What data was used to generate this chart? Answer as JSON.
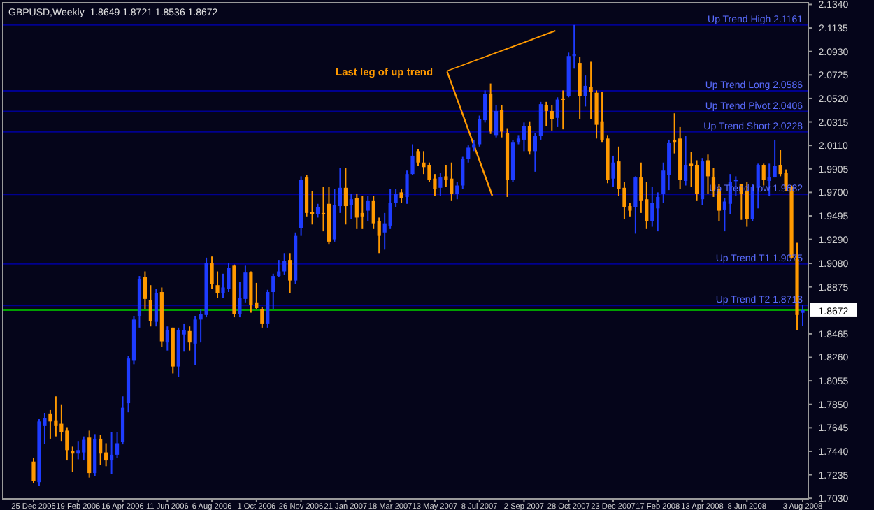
{
  "chart_data": {
    "type": "candlestick",
    "title": "GBPUSD,Weekly  1.8649 1.8721 1.8536 1.8672",
    "categories": [
      "25 Dec 2005",
      null,
      null,
      null,
      null,
      null,
      null,
      null,
      "19 Feb 2006",
      null,
      null,
      null,
      null,
      null,
      null,
      null,
      "16 Apr 2006",
      null,
      null,
      null,
      null,
      null,
      null,
      null,
      "11 Jun 2006",
      null,
      null,
      null,
      null,
      null,
      null,
      null,
      "6 Aug 2006",
      null,
      null,
      null,
      null,
      null,
      null,
      null,
      "1 Oct 2006",
      null,
      null,
      null,
      null,
      null,
      null,
      null,
      "26 Nov 2006",
      null,
      null,
      null,
      null,
      null,
      null,
      null,
      "21 Jan 2007",
      null,
      null,
      null,
      null,
      null,
      null,
      null,
      "18 Mar 2007",
      null,
      null,
      null,
      null,
      null,
      null,
      null,
      "13 May 2007",
      null,
      null,
      null,
      null,
      null,
      null,
      null,
      "8 Jul 2007",
      null,
      null,
      null,
      null,
      null,
      null,
      null,
      "2 Sep 2007",
      null,
      null,
      null,
      null,
      null,
      null,
      null,
      "28 Oct 2007",
      null,
      null,
      null,
      null,
      null,
      null,
      null,
      "23 Dec 2007",
      null,
      null,
      null,
      null,
      null,
      null,
      null,
      "17 Feb 2008",
      null,
      null,
      null,
      null,
      null,
      null,
      null,
      "13 Apr 2008",
      null,
      null,
      null,
      null,
      null,
      null,
      null,
      "8 Jun 2008",
      null,
      null,
      null,
      null,
      null,
      null,
      null,
      null,
      null,
      "3 Aug 2008"
    ],
    "ohlc": [
      [
        1.735,
        1.738,
        1.716,
        1.718
      ],
      [
        1.717,
        1.772,
        1.714,
        1.77
      ],
      [
        1.766,
        1.7775,
        1.7505,
        1.773
      ],
      [
        1.777,
        1.78,
        1.755,
        1.77
      ],
      [
        1.771,
        1.792,
        1.757,
        1.766
      ],
      [
        1.768,
        1.785,
        1.753,
        1.761
      ],
      [
        1.762,
        1.765,
        1.736,
        1.745
      ],
      [
        1.744,
        1.748,
        1.726,
        1.742
      ],
      [
        1.742,
        1.753,
        1.737,
        1.745
      ],
      [
        1.743,
        1.757,
        1.736,
        1.754
      ],
      [
        1.756,
        1.762,
        1.721,
        1.725
      ],
      [
        1.725,
        1.759,
        1.722,
        1.755
      ],
      [
        1.755,
        1.758,
        1.732,
        1.742
      ],
      [
        1.743,
        1.751,
        1.731,
        1.736
      ],
      [
        1.736,
        1.761,
        1.724,
        1.741
      ],
      [
        1.741,
        1.761,
        1.738,
        1.751
      ],
      [
        1.752,
        1.792,
        1.75,
        1.782
      ],
      [
        1.786,
        1.827,
        1.778,
        1.825
      ],
      [
        1.823,
        1.862,
        1.82,
        1.859
      ],
      [
        1.862,
        1.897,
        1.852,
        1.894
      ],
      [
        1.896,
        1.901,
        1.868,
        1.877
      ],
      [
        1.876,
        1.889,
        1.853,
        1.858
      ],
      [
        1.857,
        1.886,
        1.853,
        1.882
      ],
      [
        1.883,
        1.887,
        1.835,
        1.84
      ],
      [
        1.839,
        1.853,
        1.832,
        1.85
      ],
      [
        1.852,
        1.852,
        1.812,
        1.818
      ],
      [
        1.818,
        1.852,
        1.809,
        1.85
      ],
      [
        1.846,
        1.855,
        1.831,
        1.85
      ],
      [
        1.849,
        1.853,
        1.832,
        1.839
      ],
      [
        1.838,
        1.862,
        1.819,
        1.859
      ],
      [
        1.859,
        1.868,
        1.839,
        1.864
      ],
      [
        1.863,
        1.913,
        1.861,
        1.908
      ],
      [
        1.908,
        1.914,
        1.886,
        1.89
      ],
      [
        1.889,
        1.901,
        1.878,
        1.882
      ],
      [
        1.882,
        1.899,
        1.878,
        1.887
      ],
      [
        1.886,
        1.908,
        1.883,
        1.904
      ],
      [
        1.906,
        1.907,
        1.861,
        1.864
      ],
      [
        1.864,
        1.892,
        1.861,
        1.878
      ],
      [
        1.877,
        1.906,
        1.874,
        1.9
      ],
      [
        1.9,
        1.901,
        1.865,
        1.872
      ],
      [
        1.874,
        1.891,
        1.868,
        1.869
      ],
      [
        1.868,
        1.87,
        1.852,
        1.855
      ],
      [
        1.855,
        1.885,
        1.852,
        1.883
      ],
      [
        1.883,
        1.899,
        1.868,
        1.897
      ],
      [
        1.897,
        1.911,
        1.896,
        1.901
      ],
      [
        1.901,
        1.917,
        1.898,
        1.91
      ],
      [
        1.911,
        1.917,
        1.882,
        1.893
      ],
      [
        1.893,
        1.935,
        1.89,
        1.932
      ],
      [
        1.939,
        1.984,
        1.932,
        1.981
      ],
      [
        1.983,
        1.985,
        1.949,
        1.952
      ],
      [
        1.953,
        1.971,
        1.942,
        1.951
      ],
      [
        1.951,
        1.96,
        1.948,
        1.957
      ],
      [
        1.952,
        1.975,
        1.936,
        1.951
      ],
      [
        1.96,
        1.975,
        1.925,
        1.927
      ],
      [
        1.929,
        1.973,
        1.927,
        1.959
      ],
      [
        1.958,
        1.991,
        1.952,
        1.974
      ],
      [
        1.974,
        1.991,
        1.942,
        1.958
      ],
      [
        1.959,
        1.969,
        1.947,
        1.964
      ],
      [
        1.965,
        1.969,
        1.938,
        1.948
      ],
      [
        1.952,
        1.967,
        1.938,
        1.949
      ],
      [
        1.954,
        1.967,
        1.945,
        1.963
      ],
      [
        1.963,
        1.967,
        1.938,
        1.943
      ],
      [
        1.945,
        1.948,
        1.917,
        1.932
      ],
      [
        1.935,
        1.952,
        1.92,
        1.943
      ],
      [
        1.941,
        1.973,
        1.938,
        1.961
      ],
      [
        1.961,
        1.973,
        1.957,
        1.969
      ],
      [
        1.97,
        1.973,
        1.961,
        1.965
      ],
      [
        1.966,
        1.989,
        1.96,
        1.986
      ],
      [
        1.986,
        2.012,
        1.985,
        2.002
      ],
      [
        2.006,
        2.008,
        1.993,
        1.996
      ],
      [
        1.996,
        2.006,
        1.986,
        1.992
      ],
      [
        1.994,
        1.996,
        1.979,
        1.981
      ],
      [
        1.982,
        1.986,
        1.967,
        1.973
      ],
      [
        1.974,
        1.987,
        1.967,
        1.983
      ],
      [
        1.984,
        1.994,
        1.975,
        1.981
      ],
      [
        1.982,
        1.996,
        1.963,
        1.969
      ],
      [
        1.969,
        1.979,
        1.964,
        1.976
      ],
      [
        1.976,
        2.001,
        1.973,
        1.999
      ],
      [
        1.999,
        2.011,
        1.996,
        2.009
      ],
      [
        2.009,
        2.016,
        2.006,
        2.012
      ],
      [
        2.012,
        2.037,
        2.01,
        2.034
      ],
      [
        2.033,
        2.059,
        2.031,
        2.056
      ],
      [
        2.056,
        2.065,
        2.021,
        2.023
      ],
      [
        2.02,
        2.046,
        2.018,
        2.041
      ],
      [
        2.042,
        2.046,
        2.018,
        2.023
      ],
      [
        2.022,
        2.026,
        1.966,
        1.981
      ],
      [
        1.981,
        2.016,
        1.979,
        2.014
      ],
      [
        2.014,
        2.02,
        2.012,
        2.017
      ],
      [
        2.016,
        2.031,
        2.006,
        2.028
      ],
      [
        2.028,
        2.032,
        2.003,
        2.006
      ],
      [
        2.006,
        2.022,
        1.988,
        2.019
      ],
      [
        2.019,
        2.049,
        2.016,
        2.047
      ],
      [
        2.046,
        2.049,
        2.028,
        2.041
      ],
      [
        2.041,
        2.046,
        2.024,
        2.034
      ],
      [
        2.035,
        2.053,
        2.027,
        2.051
      ],
      [
        2.052,
        2.059,
        2.025,
        2.051
      ],
      [
        2.054,
        2.092,
        2.053,
        2.089
      ],
      [
        2.089,
        2.1161,
        2.078,
        2.091
      ],
      [
        2.083,
        2.088,
        2.034,
        2.054
      ],
      [
        2.054,
        2.072,
        2.045,
        2.063
      ],
      [
        2.062,
        2.084,
        2.034,
        2.058
      ],
      [
        2.057,
        2.059,
        2.017,
        2.029
      ],
      [
        2.032,
        2.058,
        2.014,
        2.016
      ],
      [
        2.017,
        2.02,
        1.978,
        1.981
      ],
      [
        1.982,
        2.002,
        1.975,
        1.996
      ],
      [
        1.997,
        2.01,
        1.967,
        1.973
      ],
      [
        1.974,
        1.979,
        1.947,
        1.957
      ],
      [
        1.958,
        1.961,
        1.949,
        1.954
      ],
      [
        1.957,
        1.984,
        1.934,
        1.983
      ],
      [
        1.983,
        1.996,
        1.952,
        1.963
      ],
      [
        1.964,
        1.979,
        1.938,
        1.945
      ],
      [
        1.945,
        1.975,
        1.94,
        1.961
      ],
      [
        1.956,
        1.97,
        1.936,
        1.966
      ],
      [
        1.969,
        1.996,
        1.961,
        1.989
      ],
      [
        1.985,
        2.016,
        1.972,
        2.013
      ],
      [
        2.016,
        2.039,
        2.004,
        2.014
      ],
      [
        2.017,
        2.027,
        1.973,
        1.981
      ],
      [
        1.98,
        2.019,
        1.976,
        1.994
      ],
      [
        1.995,
        2.005,
        1.975,
        1.993
      ],
      [
        1.994,
        1.998,
        1.963,
        1.969
      ],
      [
        1.964,
        2.0,
        1.959,
        1.997
      ],
      [
        1.998,
        2.003,
        1.969,
        1.984
      ],
      [
        1.983,
        1.991,
        1.966,
        1.971
      ],
      [
        1.973,
        1.977,
        1.945,
        1.954
      ],
      [
        1.955,
        1.965,
        1.936,
        1.962
      ],
      [
        1.96,
        1.986,
        1.951,
        1.979
      ],
      [
        1.98,
        1.984,
        1.967,
        1.981
      ],
      [
        1.977,
        1.977,
        1.946,
        1.969
      ],
      [
        1.971,
        1.979,
        1.94,
        1.947
      ],
      [
        1.947,
        1.977,
        1.945,
        1.975
      ],
      [
        1.974,
        1.995,
        1.956,
        1.994
      ],
      [
        1.994,
        1.995,
        1.976,
        1.981
      ],
      [
        1.98,
        1.995,
        1.967,
        1.983
      ],
      [
        1.983,
        2.016,
        1.983,
        1.993
      ],
      [
        1.994,
        2.007,
        1.984,
        1.986
      ],
      [
        1.987,
        1.99,
        1.971,
        1.974
      ],
      [
        1.975,
        1.976,
        1.912,
        1.913
      ],
      [
        1.912,
        1.926,
        1.85,
        1.863
      ],
      [
        1.8649,
        1.8721,
        1.8536,
        1.8672
      ]
    ],
    "colors": [
      "#ff9900",
      "#1e3cff",
      "#1e3cff",
      "#ff9900",
      "#ff9900",
      "#ff9900",
      "#ff9900",
      "#ff9900",
      "#1e3cff",
      "#1e3cff",
      "#ff9900",
      "#1e3cff",
      "#ff9900",
      "#ff9900",
      "#1e3cff",
      "#1e3cff",
      "#1e3cff",
      "#1e3cff",
      "#1e3cff",
      "#1e3cff",
      "#ff9900",
      "#ff9900",
      "#1e3cff",
      "#ff9900",
      "#1e3cff",
      "#ff9900",
      "#1e3cff",
      "#1e3cff",
      "#ff9900",
      "#1e3cff",
      "#1e3cff",
      "#1e3cff",
      "#ff9900",
      "#ff9900",
      "#1e3cff",
      "#1e3cff",
      "#ff9900",
      "#1e3cff",
      "#1e3cff",
      "#ff9900",
      "#ff9900",
      "#ff9900",
      "#1e3cff",
      "#1e3cff",
      "#1e3cff",
      "#1e3cff",
      "#ff9900",
      "#1e3cff",
      "#1e3cff",
      "#ff9900",
      "#ff9900",
      "#1e3cff",
      "#ff9900",
      "#ff9900",
      "#1e3cff",
      "#1e3cff",
      "#ff9900",
      "#1e3cff",
      "#ff9900",
      "#ff9900",
      "#1e3cff",
      "#ff9900",
      "#ff9900",
      "#1e3cff",
      "#1e3cff",
      "#1e3cff",
      "#ff9900",
      "#1e3cff",
      "#1e3cff",
      "#ff9900",
      "#ff9900",
      "#ff9900",
      "#ff9900",
      "#1e3cff",
      "#ff9900",
      "#ff9900",
      "#1e3cff",
      "#1e3cff",
      "#1e3cff",
      "#1e3cff",
      "#1e3cff",
      "#1e3cff",
      "#ff9900",
      "#1e3cff",
      "#ff9900",
      "#ff9900",
      "#1e3cff",
      "#1e3cff",
      "#1e3cff",
      "#ff9900",
      "#1e3cff",
      "#1e3cff",
      "#ff9900",
      "#ff9900",
      "#1e3cff",
      "#ff9900",
      "#1e3cff",
      "#1e3cff",
      "#ff9900",
      "#1e3cff",
      "#ff9900",
      "#ff9900",
      "#ff9900",
      "#ff9900",
      "#1e3cff",
      "#ff9900",
      "#ff9900",
      "#ff9900",
      "#1e3cff",
      "#ff9900",
      "#ff9900",
      "#1e3cff",
      "#1e3cff",
      "#1e3cff",
      "#1e3cff",
      "#ff9900",
      "#ff9900",
      "#1e3cff",
      "#ff9900",
      "#ff9900",
      "#1e3cff",
      "#ff9900",
      "#ff9900",
      "#ff9900",
      "#1e3cff",
      "#1e3cff",
      "#1e3cff",
      "#ff9900",
      "#ff9900",
      "#1e3cff",
      "#1e3cff",
      "#ff9900",
      "#1e3cff",
      "#1e3cff",
      "#ff9900",
      "#ff9900",
      "#ff9900",
      "#ff9900",
      "#1e3cff"
    ],
    "ylim": [
      1.7025,
      2.1355
    ],
    "yticks": [
      {
        "value": 2.134,
        "label": "2.1340"
      },
      {
        "value": 2.1135,
        "label": "2.1135"
      },
      {
        "value": 2.093,
        "label": "2.0930"
      },
      {
        "value": 2.0725,
        "label": "2.0725"
      },
      {
        "value": 2.052,
        "label": "2.0520"
      },
      {
        "value": 2.0315,
        "label": "2.0315"
      },
      {
        "value": 2.011,
        "label": "2.0110"
      },
      {
        "value": 1.9905,
        "label": "1.9905"
      },
      {
        "value": 1.97,
        "label": "1.9700"
      },
      {
        "value": 1.9495,
        "label": "1.9495"
      },
      {
        "value": 1.929,
        "label": "1.9290"
      },
      {
        "value": 1.908,
        "label": "1.9080"
      },
      {
        "value": 1.8875,
        "label": "1.8875"
      },
      {
        "value": 1.8465,
        "label": "1.8465"
      },
      {
        "value": 1.826,
        "label": "1.8260"
      },
      {
        "value": 1.8055,
        "label": "1.8055"
      },
      {
        "value": 1.785,
        "label": "1.7850"
      },
      {
        "value": 1.7645,
        "label": "1.7645"
      },
      {
        "value": 1.744,
        "label": "1.7440"
      },
      {
        "value": 1.7235,
        "label": "1.7235"
      },
      {
        "value": 1.703,
        "label": "1.7030"
      }
    ],
    "ref_lines": [
      {
        "axis": "y",
        "value": 2.1161,
        "label": "Up Trend High  2.1161",
        "color": "#000090"
      },
      {
        "axis": "y",
        "value": 2.0586,
        "label": "Up Trend Long  2.0586",
        "color": "#000090"
      },
      {
        "axis": "y",
        "value": 2.0406,
        "label": "Up Trend Pivot  2.0406",
        "color": "#000090"
      },
      {
        "axis": "y",
        "value": 2.0228,
        "label": "Up Trend Short  2.0228",
        "color": "#000090"
      },
      {
        "axis": "y",
        "value": 1.9682,
        "label": "Up Trend Low  1.9682",
        "color": "#000090"
      },
      {
        "axis": "y",
        "value": 1.9075,
        "label": "Up Trend  T1  1.9075",
        "color": "#000090"
      },
      {
        "axis": "y",
        "value": 1.8713,
        "label": "Up Trend  T2  1.8713",
        "color": "#000090"
      },
      {
        "axis": "y",
        "value": 1.8672,
        "label": "1.8672",
        "color": "#00a000"
      }
    ],
    "annotations": [
      "Last leg of up trend"
    ]
  }
}
